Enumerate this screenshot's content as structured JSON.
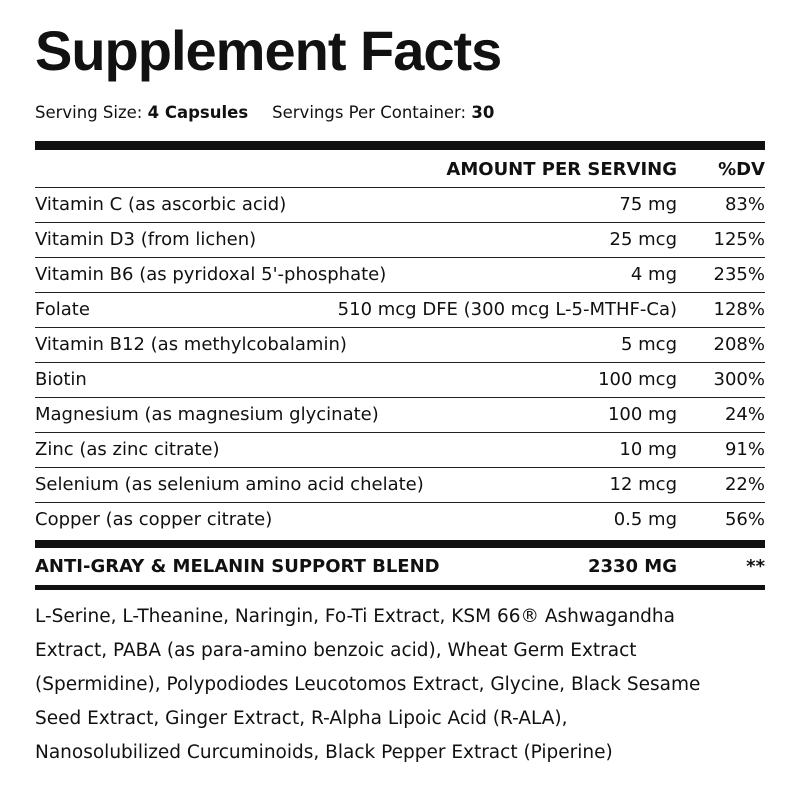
{
  "title": "Supplement Facts",
  "serving": {
    "size_label": "Serving Size:",
    "size": "4 Capsules",
    "per_container_label": "Servings Per Container:",
    "per_container": "30"
  },
  "header": {
    "amount": "AMOUNT PER SERVING",
    "dv": "%DV"
  },
  "rows": [
    [
      "Vitamin C (as ascorbic acid)",
      "75 mg",
      "83%"
    ],
    [
      "Vitamin D3 (from lichen)",
      "25 mcg",
      "125%"
    ],
    [
      "Vitamin B6 (as pyridoxal 5'-phosphate)",
      "4 mg",
      "235%"
    ],
    [
      "Folate",
      "510 mcg DFE (300 mcg L-5-MTHF-Ca)",
      "128%"
    ],
    [
      "Vitamin B12 (as methylcobalamin)",
      "5 mcg",
      "208%"
    ],
    [
      "Biotin",
      "100 mcg",
      "300%"
    ],
    [
      "Magnesium (as magnesium glycinate)",
      "100 mg",
      "24%"
    ],
    [
      "Zinc (as zinc citrate)",
      "10 mg",
      "91%"
    ],
    [
      "Selenium (as selenium amino acid chelate)",
      "12 mcg",
      "22%"
    ],
    [
      "Copper (as copper citrate)",
      "0.5 mg",
      "56%"
    ]
  ],
  "blend": {
    "name": "ANTI-GRAY & MELANIN SUPPORT BLEND",
    "amount": "2330 MG",
    "dv": "**"
  },
  "ingredients": [
    "L-Serine, L-Theanine, Naringin, Fo-Ti Extract, KSM 66® Ashwagandha",
    "Extract, PABA (as para-amino benzoic acid), Wheat Germ Extract",
    "(Spermidine), Polypodiodes Leucotomos Extract, Glycine, Black Sesame",
    "Seed Extract, Ginger Extract, R-Alpha Lipoic Acid (R-ALA),",
    "Nanosolubilized Curcuminoids, Black Pepper Extract (Piperine)"
  ]
}
